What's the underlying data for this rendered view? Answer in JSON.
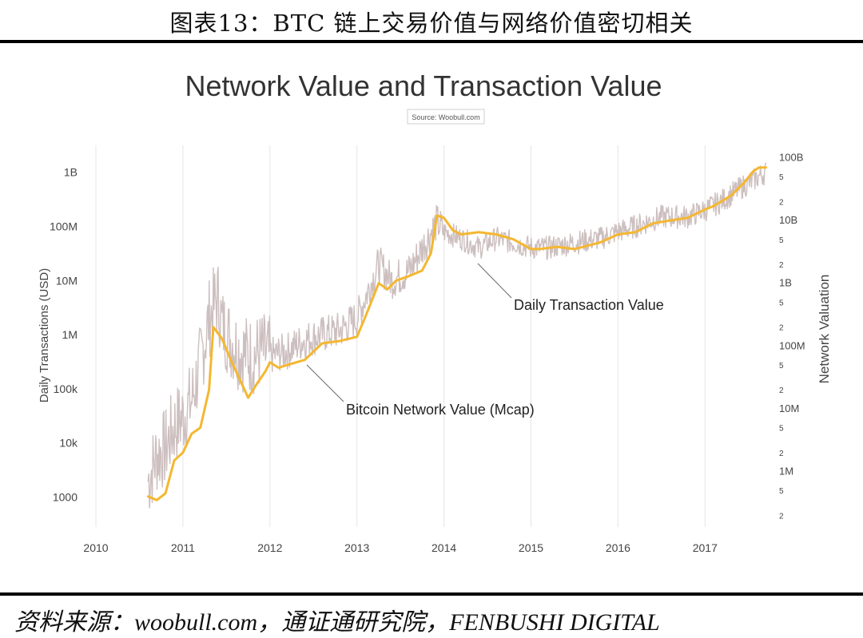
{
  "figure": {
    "title": "图表13：BTC 链上交易价值与网络价值密切相关",
    "source": "资料来源：woobull.com，通证通研究院，FENBUSHI DIGITAL"
  },
  "chart_data": {
    "type": "line",
    "title": "Network Value and Transaction Value",
    "subtitle": "Source: Woobull.com",
    "xlabel": "",
    "ylabel_left": "Daily Transactions (USD)",
    "ylabel_right": "Network Valuation",
    "scale": "log",
    "x_ticks": [
      "2010",
      "2011",
      "2012",
      "2013",
      "2014",
      "2015",
      "2016",
      "2017"
    ],
    "y_left_ticks": [
      "1000",
      "10k",
      "100k",
      "1M",
      "10M",
      "100M",
      "1B"
    ],
    "y_right_ticks": [
      "100B",
      "5",
      "2",
      "10B",
      "5",
      "2",
      "1B",
      "5",
      "2",
      "100M",
      "5",
      "2",
      "10M",
      "5",
      "2",
      "1M",
      "5",
      "2"
    ],
    "grid": "vertical",
    "colors": {
      "network_value": "#f4b731",
      "transaction_value": "#cdbfbf",
      "grid": "#e6e6e6",
      "text": "#444444"
    },
    "annotations": [
      {
        "text": "Daily Transaction Value",
        "points_to": "Daily Transaction Value"
      },
      {
        "text": "Bitcoin Network Value (Mcap)",
        "points_to": "Bitcoin Network Value (Mcap)"
      }
    ],
    "series": [
      {
        "name": "Daily Transaction Value",
        "axis": "left",
        "x": [
          2010.6,
          2010.7,
          2010.8,
          2010.9,
          2011.0,
          2011.1,
          2011.2,
          2011.3,
          2011.4,
          2011.45,
          2011.55,
          2011.65,
          2011.8,
          2011.9,
          2012.0,
          2012.2,
          2012.4,
          2012.6,
          2012.8,
          2013.0,
          2013.1,
          2013.25,
          2013.4,
          2013.6,
          2013.75,
          2013.92,
          2014.0,
          2014.2,
          2014.4,
          2014.6,
          2014.8,
          2015.0,
          2015.2,
          2015.5,
          2015.8,
          2016.0,
          2016.2,
          2016.5,
          2016.8,
          2017.0,
          2017.2,
          2017.4,
          2017.55,
          2017.65,
          2017.7
        ],
        "y": [
          2000,
          6000,
          8000,
          20000,
          30000,
          60000,
          300000,
          2000000,
          5000000,
          1500000,
          800000,
          500000,
          400000,
          500000,
          400000,
          500000,
          800000,
          1000000,
          1200000,
          2000000,
          5000000,
          20000000,
          10000000,
          15000000,
          40000000,
          120000000,
          80000000,
          60000000,
          40000000,
          60000000,
          50000000,
          40000000,
          40000000,
          50000000,
          60000000,
          80000000,
          100000000,
          150000000,
          150000000,
          200000000,
          300000000,
          500000000,
          700000000,
          900000000,
          1000000000
        ]
      },
      {
        "name": "Bitcoin Network Value (Mcap)",
        "axis": "right",
        "x": [
          2010.6,
          2010.7,
          2010.8,
          2010.9,
          2011.0,
          2011.1,
          2011.2,
          2011.3,
          2011.35,
          2011.45,
          2011.55,
          2011.65,
          2011.75,
          2011.85,
          2011.95,
          2012.0,
          2012.1,
          2012.2,
          2012.4,
          2012.6,
          2012.8,
          2013.0,
          2013.1,
          2013.25,
          2013.35,
          2013.45,
          2013.6,
          2013.75,
          2013.85,
          2013.92,
          2014.0,
          2014.1,
          2014.2,
          2014.4,
          2014.6,
          2014.8,
          2015.0,
          2015.1,
          2015.3,
          2015.5,
          2015.8,
          2016.0,
          2016.2,
          2016.4,
          2016.6,
          2016.8,
          2017.0,
          2017.1,
          2017.3,
          2017.45,
          2017.55,
          2017.62,
          2017.7
        ],
        "y": [
          400000,
          350000,
          450000,
          1500000,
          2000000,
          4000000,
          5000000,
          20000000,
          200000000,
          130000000,
          60000000,
          30000000,
          15000000,
          25000000,
          40000000,
          55000000,
          45000000,
          50000000,
          60000000,
          110000000,
          120000000,
          140000000,
          300000000,
          1000000000,
          800000000,
          1100000000,
          1300000000,
          1600000000,
          3000000000,
          12000000000,
          11000000000,
          7000000000,
          6000000000,
          6500000000,
          6000000000,
          5000000000,
          3500000000,
          3500000000,
          3800000000,
          3500000000,
          4500000000,
          6000000000,
          6500000000,
          9000000000,
          10000000000,
          11000000000,
          15000000000,
          17000000000,
          25000000000,
          40000000000,
          60000000000,
          70000000000,
          70000000000
        ]
      }
    ]
  }
}
